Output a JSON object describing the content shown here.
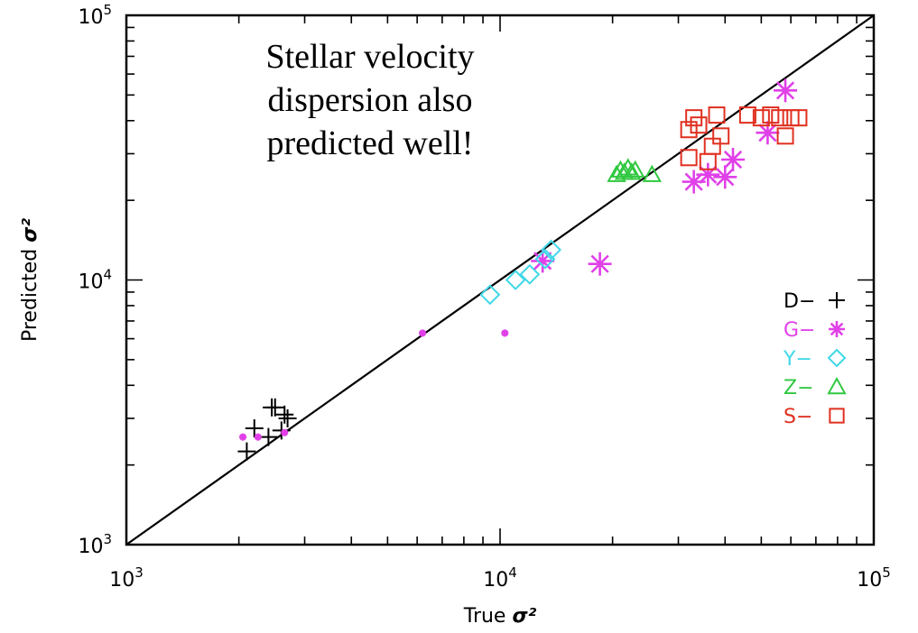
{
  "chart_data": {
    "type": "scatter",
    "annotation": [
      "Stellar velocity",
      "dispersion also",
      "predicted well!"
    ],
    "xlabel": "True σ²",
    "ylabel": "Predicted σ²",
    "xscale": "log",
    "yscale": "log",
    "xlim": [
      1000,
      100000
    ],
    "ylim": [
      1000,
      100000
    ],
    "xticks": [
      {
        "value": 1000,
        "base": "10",
        "exp": "3"
      },
      {
        "value": 10000,
        "base": "10",
        "exp": "4"
      },
      {
        "value": 100000,
        "base": "10",
        "exp": "5"
      }
    ],
    "yticks": [
      {
        "value": 1000,
        "base": "10",
        "exp": "3"
      },
      {
        "value": 10000,
        "base": "10",
        "exp": "4"
      },
      {
        "value": 100000,
        "base": "10",
        "exp": "5"
      }
    ],
    "grid": false,
    "legend_position": "right",
    "reference_line": "y = x",
    "series": [
      {
        "name": "D",
        "marker": "plus",
        "color": "#000000",
        "points": [
          [
            2100,
            2250
          ],
          [
            2200,
            2750
          ],
          [
            2450,
            3300
          ],
          [
            2500,
            3300
          ],
          [
            2650,
            3100
          ],
          [
            2400,
            2550
          ],
          [
            2600,
            2700
          ],
          [
            2700,
            3000
          ]
        ]
      },
      {
        "name": "G",
        "marker": "asterisk",
        "color": "#e040e8",
        "points": [
          [
            2050,
            2550
          ],
          [
            2250,
            2550
          ],
          [
            2650,
            2650
          ],
          [
            6200,
            6300
          ],
          [
            10300,
            6300
          ],
          [
            13000,
            11800
          ],
          [
            18500,
            11500
          ],
          [
            33000,
            23500
          ],
          [
            36000,
            25000
          ],
          [
            40000,
            24500
          ],
          [
            42000,
            28500
          ],
          [
            52000,
            36000
          ],
          [
            58000,
            52000
          ]
        ]
      },
      {
        "name": "Y",
        "marker": "diamond",
        "color": "#40d8e8",
        "points": [
          [
            9400,
            8800
          ],
          [
            11000,
            10000
          ],
          [
            12000,
            10500
          ],
          [
            13200,
            12000
          ],
          [
            13700,
            13000
          ]
        ]
      },
      {
        "name": "Z",
        "marker": "triangle",
        "color": "#30c840",
        "points": [
          [
            20500,
            25000
          ],
          [
            21000,
            26000
          ],
          [
            21500,
            25500
          ],
          [
            22000,
            26500
          ],
          [
            22500,
            25500
          ],
          [
            23000,
            26000
          ],
          [
            25500,
            25000
          ]
        ]
      },
      {
        "name": "S",
        "marker": "square",
        "color": "#e03020",
        "points": [
          [
            32000,
            29000
          ],
          [
            32000,
            37000
          ],
          [
            33000,
            41000
          ],
          [
            34000,
            38500
          ],
          [
            36000,
            28000
          ],
          [
            37000,
            32000
          ],
          [
            38000,
            42000
          ],
          [
            39000,
            35000
          ],
          [
            46000,
            42000
          ],
          [
            50000,
            41000
          ],
          [
            53000,
            42000
          ],
          [
            56000,
            41000
          ],
          [
            58000,
            35000
          ],
          [
            60000,
            41000
          ],
          [
            63000,
            41000
          ]
        ]
      }
    ],
    "legend": [
      {
        "label": "D−",
        "series": "D"
      },
      {
        "label": "G−",
        "series": "G"
      },
      {
        "label": "Y−",
        "series": "Y"
      },
      {
        "label": "Z−",
        "series": "Z"
      },
      {
        "label": "S−",
        "series": "S"
      }
    ]
  }
}
